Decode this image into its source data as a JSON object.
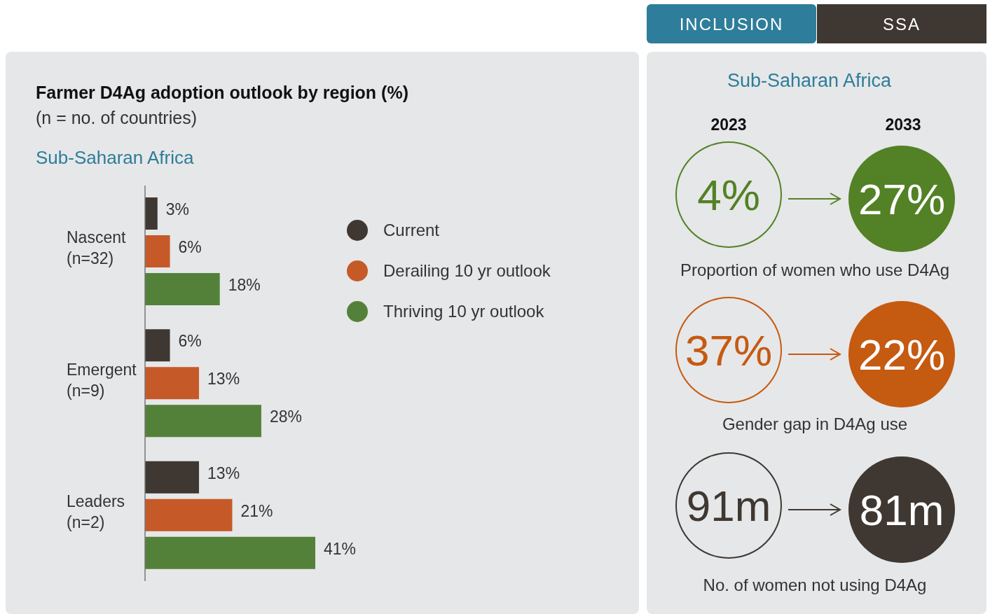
{
  "chart_data": [
    {
      "type": "bar",
      "orientation": "horizontal",
      "title": "Farmer D4Ag adoption outlook by region (%)",
      "subtitle": "(n = no. of countries)",
      "annotations": [
        "Sub-Saharan Africa"
      ],
      "categories": [
        "Nascent (n=32)",
        "Emergent (n=9)",
        "Leaders (n=2)"
      ],
      "legend": "top right",
      "series": [
        {
          "name": "Current",
          "color": "#3f3832",
          "values": [
            3,
            6,
            13
          ],
          "value_labels": [
            "3%",
            "6%",
            "13%"
          ]
        },
        {
          "name": "Derailing 10 yr outlook",
          "color": "#c55a28",
          "values": [
            6,
            13,
            21
          ],
          "value_labels": [
            "6%",
            "13%",
            "21%"
          ]
        },
        {
          "name": "Thriving 10 yr outlook",
          "color": "#538139",
          "values": [
            18,
            28,
            41
          ],
          "value_labels": [
            "18%",
            "28%",
            "41%"
          ]
        }
      ]
    },
    {
      "type": "other",
      "title": "Sub-Saharan Africa",
      "annotations": [
        "INCLUSION",
        "SSA"
      ],
      "categories": [
        "Proportion of women who use D4Ag",
        "Gender gap in D4Ag use",
        "No. of women not using D4Ag"
      ],
      "series": [
        {
          "name": "2023",
          "values": [
            4,
            37,
            91
          ],
          "value_labels": [
            "4%",
            "37%",
            "91m"
          ],
          "colors": [
            "#538126",
            "#c55a11",
            "#3f3832"
          ]
        },
        {
          "name": "2033",
          "values": [
            27,
            22,
            81
          ],
          "value_labels": [
            "27%",
            "22%",
            "81m"
          ],
          "colors": [
            "#538126",
            "#c55a11",
            "#3f3832"
          ]
        }
      ]
    }
  ]
}
